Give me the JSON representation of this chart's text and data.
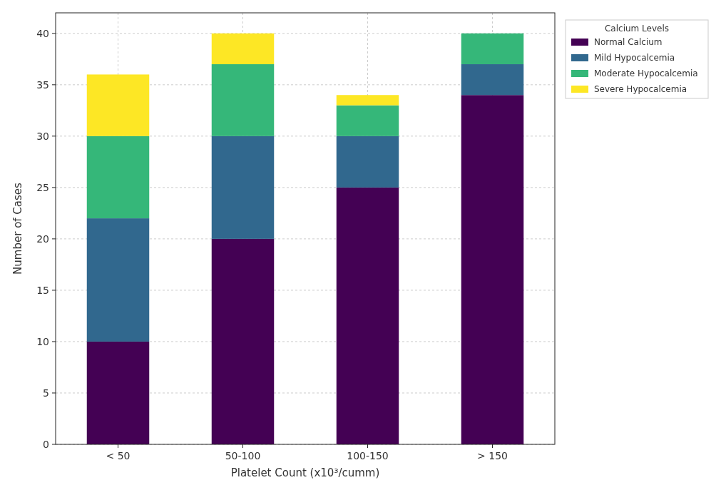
{
  "chart_data": {
    "type": "bar",
    "stacked": true,
    "xlabel": "Platelet Count (x10³/cumm)",
    "ylabel": "Number of Cases",
    "legend_title": "Calcium Levels",
    "legend": "right",
    "grid": true,
    "categories": [
      "< 50",
      "50-100",
      "100-150",
      "> 150"
    ],
    "ylim": [
      0,
      42
    ],
    "yticks": [
      0,
      5,
      10,
      15,
      20,
      25,
      30,
      35,
      40
    ],
    "series": [
      {
        "name": "Normal Calcium",
        "color": "#440154",
        "values": [
          10,
          20,
          25,
          34
        ]
      },
      {
        "name": "Mild Hypocalcemia",
        "color": "#31688e",
        "values": [
          12,
          10,
          5,
          3
        ]
      },
      {
        "name": "Moderate Hypocalcemia",
        "color": "#35b779",
        "values": [
          8,
          7,
          3,
          3
        ]
      },
      {
        "name": "Severe Hypocalcemia",
        "color": "#fde725",
        "values": [
          6,
          3,
          1,
          0
        ]
      }
    ]
  }
}
